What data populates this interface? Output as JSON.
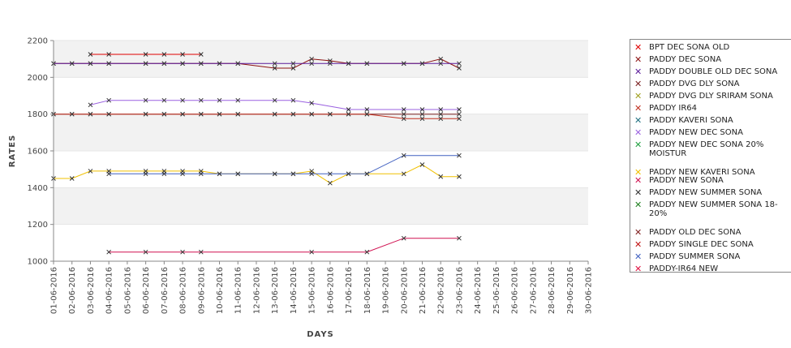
{
  "chart_data": {
    "type": "line",
    "title": "",
    "xlabel": "DAYS",
    "ylabel": "RATES",
    "ylim": [
      1000,
      2200
    ],
    "yticks": [
      1000,
      1200,
      1400,
      1600,
      1800,
      2000,
      2200
    ],
    "grid": "horizontal bands",
    "legend_position": "right",
    "categories": [
      "01-06-2016",
      "02-06-2016",
      "03-06-2016",
      "04-06-2016",
      "05-06-2016",
      "06-06-2016",
      "07-06-2016",
      "08-06-2016",
      "09-06-2016",
      "10-06-2016",
      "11-06-2016",
      "12-06-2016",
      "13-06-2016",
      "14-06-2016",
      "15-06-2016",
      "16-06-2016",
      "17-06-2016",
      "18-06-2016",
      "19-06-2016",
      "20-06-2016",
      "21-06-2016",
      "22-06-2016",
      "23-06-2016",
      "24-06-2016",
      "25-06-2016",
      "26-06-2016",
      "27-06-2016",
      "28-06-2016",
      "29-06-2016",
      "30-06-2016"
    ],
    "series": [
      {
        "name": "BPT DEC SONA OLD",
        "color": "#e00000",
        "values": [
          null,
          null,
          2125,
          2125,
          null,
          2125,
          2125,
          2125,
          2125,
          null,
          null,
          null,
          null,
          null,
          null,
          null,
          null,
          null,
          null,
          null,
          null,
          null,
          null,
          null,
          null,
          null,
          null,
          null,
          null,
          null
        ]
      },
      {
        "name": "PADDY DEC SONA",
        "color": "#8b1010",
        "values": [
          2075,
          2075,
          2075,
          2075,
          null,
          2075,
          2075,
          2075,
          2075,
          2075,
          2075,
          null,
          2050,
          2050,
          2100,
          2090,
          2075,
          2075,
          null,
          2075,
          2075,
          2100,
          2050,
          null,
          null,
          null,
          null,
          null,
          null,
          null
        ]
      },
      {
        "name": "PADDY DOUBLE OLD DEC SONA",
        "color": "#5a1a9a",
        "values": [
          2075,
          2075,
          2075,
          2075,
          null,
          2075,
          2075,
          2075,
          2075,
          2075,
          2075,
          null,
          2075,
          2075,
          2075,
          2075,
          2075,
          2075,
          null,
          2075,
          2075,
          2075,
          2075,
          null,
          null,
          null,
          null,
          null,
          null,
          null
        ]
      },
      {
        "name": "PADDY DVG DLY SONA",
        "color": "#7a2020",
        "values": [
          1800,
          1800,
          1800,
          1800,
          null,
          1800,
          1800,
          1800,
          1800,
          1800,
          1800,
          null,
          1800,
          1800,
          1800,
          1800,
          1800,
          1800,
          null,
          1800,
          1800,
          1800,
          1800,
          null,
          null,
          null,
          null,
          null,
          null,
          null
        ]
      },
      {
        "name": "PADDY DVG DLY SRIRAM SONA",
        "color": "#a0a020",
        "values": [
          null,
          null,
          null,
          null,
          null,
          null,
          null,
          null,
          null,
          null,
          null,
          null,
          null,
          null,
          null,
          null,
          null,
          null,
          null,
          null,
          null,
          null,
          null,
          null,
          null,
          null,
          null,
          null,
          null,
          null
        ]
      },
      {
        "name": "PADDY IR64",
        "color": "#c03020",
        "values": [
          1800,
          1800,
          1800,
          1800,
          null,
          1800,
          1800,
          1800,
          1800,
          1800,
          1800,
          null,
          1800,
          1800,
          1800,
          1800,
          1800,
          1800,
          null,
          1775,
          1775,
          1775,
          1775,
          null,
          null,
          null,
          null,
          null,
          null,
          null
        ]
      },
      {
        "name": "PADDY KAVERI SONA",
        "color": "#207080",
        "values": [
          null,
          null,
          null,
          null,
          null,
          null,
          null,
          null,
          null,
          null,
          null,
          null,
          null,
          null,
          null,
          null,
          null,
          null,
          null,
          null,
          null,
          null,
          null,
          null,
          null,
          null,
          null,
          null,
          null,
          null
        ]
      },
      {
        "name": "PADDY NEW DEC SONA",
        "color": "#9a60e0",
        "values": [
          null,
          null,
          1850,
          1875,
          null,
          1875,
          1875,
          1875,
          1875,
          1875,
          1875,
          null,
          1875,
          1875,
          1860,
          null,
          1825,
          1825,
          null,
          1825,
          1825,
          1825,
          1825,
          null,
          null,
          null,
          null,
          null,
          null,
          null
        ]
      },
      {
        "name": "PADDY NEW DEC SONA 20% MOISTUR",
        "color": "#20a040",
        "values": [
          null,
          null,
          null,
          null,
          null,
          null,
          null,
          null,
          null,
          null,
          null,
          null,
          null,
          null,
          null,
          null,
          null,
          null,
          null,
          null,
          null,
          null,
          null,
          null,
          null,
          null,
          null,
          null,
          null,
          null
        ]
      },
      {
        "name": "PADDY NEW KAVERI SONA",
        "color": "#f0c000",
        "values": [
          1450,
          1450,
          1490,
          1490,
          null,
          1490,
          1490,
          1490,
          1490,
          1475,
          1475,
          null,
          1475,
          1475,
          1490,
          1425,
          1475,
          1475,
          null,
          1475,
          1525,
          1460,
          1460,
          null,
          null,
          null,
          null,
          null,
          null,
          null
        ]
      },
      {
        "name": "PADDY NEW SONA",
        "color": "#d01050",
        "values": [
          null,
          null,
          null,
          1050,
          null,
          1050,
          null,
          1050,
          1050,
          null,
          null,
          null,
          null,
          null,
          1050,
          null,
          null,
          1050,
          null,
          1125,
          null,
          null,
          1125,
          null,
          null,
          null,
          null,
          null,
          null,
          null
        ]
      },
      {
        "name": "PADDY NEW SUMMER SONA",
        "color": "#303030",
        "values": [
          null,
          null,
          null,
          null,
          null,
          null,
          null,
          null,
          null,
          null,
          null,
          null,
          null,
          null,
          null,
          null,
          null,
          null,
          null,
          null,
          null,
          null,
          null,
          null,
          null,
          null,
          null,
          null,
          null,
          null
        ]
      },
      {
        "name": "PADDY NEW SUMMER SONA 18-20%",
        "color": "#208020",
        "values": [
          null,
          null,
          null,
          null,
          null,
          null,
          null,
          null,
          null,
          null,
          null,
          null,
          null,
          null,
          null,
          null,
          null,
          null,
          null,
          null,
          null,
          null,
          null,
          null,
          null,
          null,
          null,
          null,
          null,
          null
        ]
      },
      {
        "name": "PADDY OLD DEC SONA",
        "color": "#802020",
        "values": [
          null,
          null,
          null,
          null,
          null,
          null,
          null,
          null,
          null,
          null,
          null,
          null,
          null,
          null,
          null,
          null,
          null,
          null,
          null,
          null,
          null,
          null,
          null,
          null,
          null,
          null,
          null,
          null,
          null,
          null
        ]
      },
      {
        "name": "PADDY SINGLE DEC SONA",
        "color": "#c01010",
        "values": [
          null,
          null,
          null,
          null,
          null,
          null,
          null,
          null,
          null,
          null,
          null,
          null,
          null,
          null,
          null,
          null,
          null,
          null,
          null,
          null,
          null,
          null,
          null,
          null,
          null,
          null,
          null,
          null,
          null,
          null
        ]
      },
      {
        "name": "PADDY SUMMER SONA",
        "color": "#4060c0",
        "values": [
          null,
          null,
          null,
          1475,
          null,
          1475,
          1475,
          1475,
          1475,
          1475,
          1475,
          null,
          1475,
          1475,
          1475,
          1475,
          1475,
          1475,
          null,
          1575,
          null,
          null,
          1575,
          null,
          null,
          null,
          null,
          null,
          null,
          null
        ]
      },
      {
        "name": "PADDY-IR64 NEW",
        "color": "#e01040",
        "values": [
          null,
          null,
          null,
          null,
          null,
          null,
          null,
          null,
          null,
          null,
          null,
          null,
          null,
          null,
          null,
          null,
          null,
          null,
          null,
          null,
          null,
          null,
          null,
          null,
          null,
          null,
          null,
          null,
          null,
          null
        ]
      }
    ]
  }
}
